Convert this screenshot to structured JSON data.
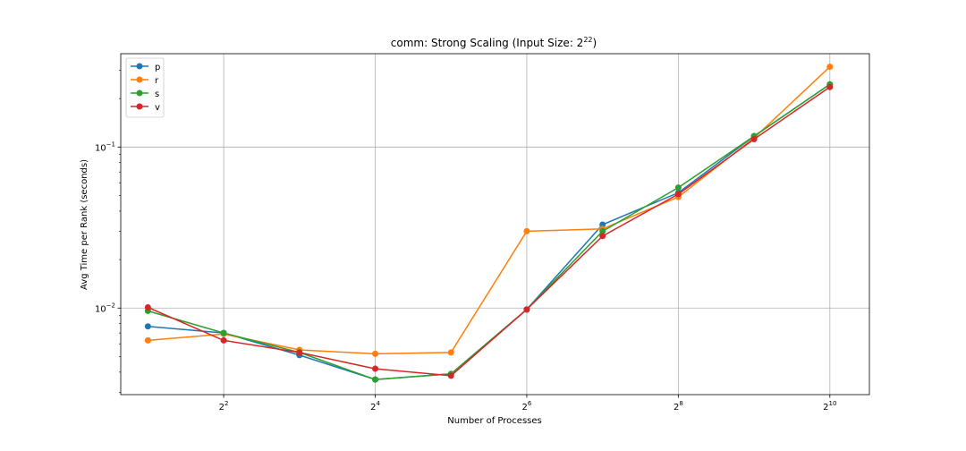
{
  "chart_data": {
    "type": "line",
    "title": "comm: Strong Scaling (Input Size: 2",
    "title_sup": "22",
    "title_end": ")",
    "xlabel": "Number of Processes",
    "ylabel": "Avg Time per Rank (seconds)",
    "x_scale": "log2",
    "y_scale": "log10",
    "xlim": [
      1.56,
      1470
    ],
    "ylim": [
      0.0029,
      0.38
    ],
    "grid": true,
    "legend_position": "top-left",
    "x": [
      2,
      4,
      8,
      16,
      32,
      64,
      128,
      256,
      512,
      1024
    ],
    "x_ticks": [
      {
        "value": 4,
        "base": "2",
        "exp": "2"
      },
      {
        "value": 16,
        "base": "2",
        "exp": "4"
      },
      {
        "value": 64,
        "base": "2",
        "exp": "6"
      },
      {
        "value": 256,
        "base": "2",
        "exp": "8"
      },
      {
        "value": 1024,
        "base": "2",
        "exp": "10"
      }
    ],
    "y_ticks": [
      {
        "value": 0.01,
        "base": "10",
        "exp": "−2"
      },
      {
        "value": 0.1,
        "base": "10",
        "exp": "−1"
      }
    ],
    "series": [
      {
        "name": "p",
        "color": "#1f77b4",
        "values": [
          0.0077,
          0.007,
          0.0051,
          0.0036,
          0.0039,
          0.0098,
          0.033,
          0.052,
          0.117,
          0.245
        ]
      },
      {
        "name": "r",
        "color": "#ff7f0e",
        "values": [
          0.0063,
          0.0069,
          0.0055,
          0.0052,
          0.0053,
          0.03,
          0.031,
          0.049,
          0.114,
          0.315
        ]
      },
      {
        "name": "s",
        "color": "#2ca02c",
        "values": [
          0.0096,
          0.007,
          0.0053,
          0.0036,
          0.0039,
          0.0098,
          0.03,
          0.056,
          0.117,
          0.245
        ]
      },
      {
        "name": "v",
        "color": "#d62728",
        "values": [
          0.0101,
          0.0063,
          0.0053,
          0.0042,
          0.0038,
          0.0098,
          0.028,
          0.051,
          0.112,
          0.236
        ]
      }
    ]
  }
}
